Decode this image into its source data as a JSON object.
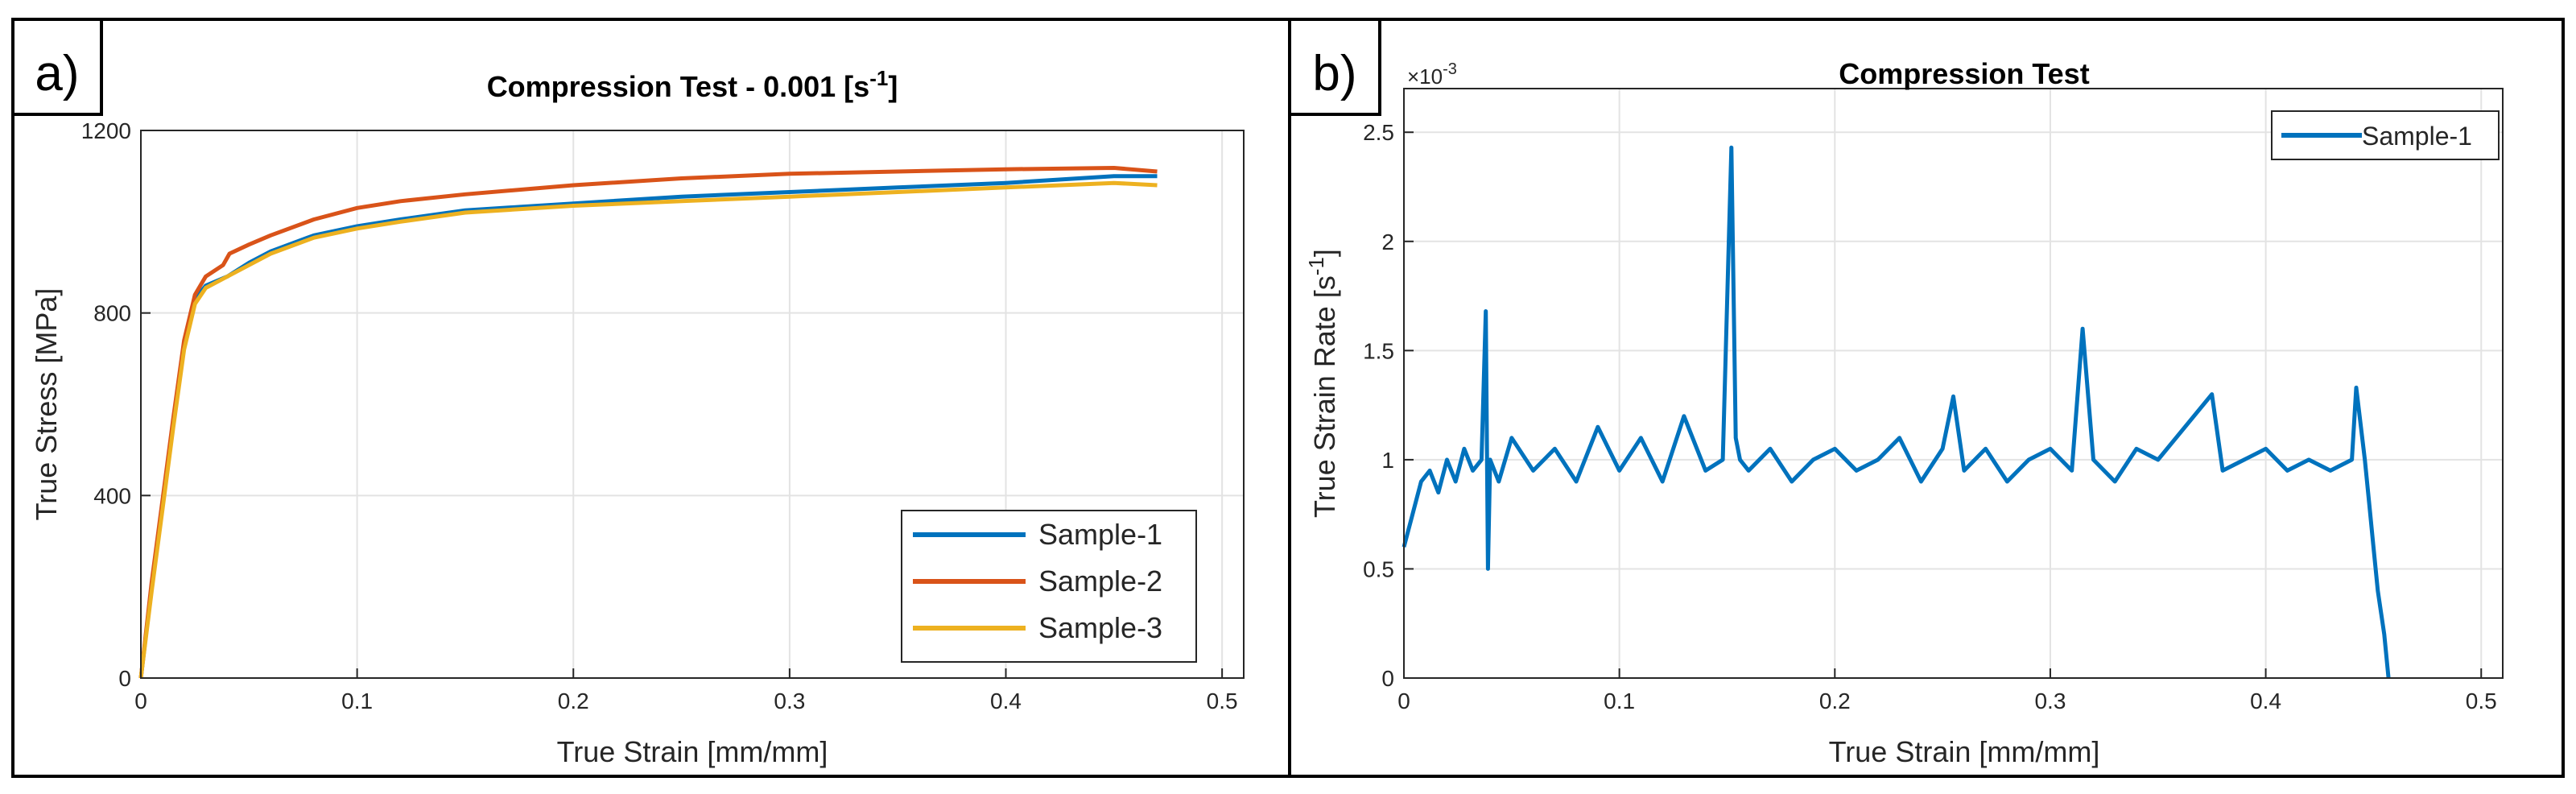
{
  "colors": {
    "sample1": "#0072BD",
    "sample2": "#D95319",
    "sample3": "#EDB120",
    "grid": "#e3e3e3",
    "axis": "#262626",
    "frame": "#000000"
  },
  "chart_data": [
    {
      "type": "line",
      "panel_label": "a)",
      "title": "Compression Test - 0.001 [s",
      "title_sup": "-1",
      "title_end": "]",
      "xlabel": "True Strain [mm/mm]",
      "ylabel": "True Stress [MPa]",
      "xlim": [
        0,
        0.51
      ],
      "ylim": [
        0,
        1200
      ],
      "xticks": [
        0,
        0.1,
        0.2,
        0.3,
        0.4,
        0.5
      ],
      "xtick_labels": [
        "0",
        "0.1",
        "0.2",
        "0.3",
        "0.4",
        "0.5"
      ],
      "yticks": [
        0,
        400,
        800,
        1200
      ],
      "ytick_labels": [
        "0",
        "400",
        "800",
        "1200"
      ],
      "grid": true,
      "legend_position": "bottom-right",
      "series": [
        {
          "name": "Sample-1",
          "color_key": "sample1",
          "x": [
            0,
            0.005,
            0.01,
            0.015,
            0.02,
            0.025,
            0.03,
            0.04,
            0.05,
            0.06,
            0.08,
            0.1,
            0.12,
            0.15,
            0.2,
            0.25,
            0.3,
            0.35,
            0.4,
            0.45,
            0.47
          ],
          "y": [
            0,
            200,
            380,
            560,
            730,
            830,
            860,
            880,
            910,
            935,
            970,
            990,
            1005,
            1025,
            1040,
            1055,
            1065,
            1075,
            1085,
            1100,
            1100
          ]
        },
        {
          "name": "Sample-2",
          "color_key": "sample2",
          "x": [
            0,
            0.005,
            0.01,
            0.015,
            0.02,
            0.025,
            0.03,
            0.038,
            0.041,
            0.05,
            0.06,
            0.08,
            0.1,
            0.12,
            0.15,
            0.2,
            0.25,
            0.3,
            0.35,
            0.4,
            0.45,
            0.47
          ],
          "y": [
            0,
            210,
            390,
            570,
            740,
            840,
            880,
            905,
            930,
            950,
            970,
            1005,
            1030,
            1045,
            1060,
            1080,
            1095,
            1105,
            1110,
            1115,
            1118,
            1110
          ]
        },
        {
          "name": "Sample-3",
          "color_key": "sample3",
          "x": [
            0,
            0.005,
            0.01,
            0.015,
            0.02,
            0.025,
            0.03,
            0.04,
            0.05,
            0.06,
            0.08,
            0.1,
            0.12,
            0.15,
            0.2,
            0.25,
            0.3,
            0.35,
            0.4,
            0.45,
            0.47
          ],
          "y": [
            0,
            190,
            370,
            550,
            720,
            820,
            855,
            880,
            905,
            930,
            965,
            985,
            1000,
            1020,
            1035,
            1045,
            1055,
            1065,
            1075,
            1085,
            1080
          ]
        }
      ]
    },
    {
      "type": "line",
      "panel_label": "b)",
      "title": "Compression Test",
      "xlabel": "True Strain [mm/mm]",
      "ylabel": "True Strain Rate [s",
      "ylabel_sup": "-1",
      "ylabel_end": "]",
      "y_exponent_prefix": "×10",
      "y_exponent_sup": "-3",
      "xlim": [
        0,
        0.51
      ],
      "ylim": [
        0,
        2.7
      ],
      "xticks": [
        0,
        0.1,
        0.2,
        0.3,
        0.4,
        0.5
      ],
      "xtick_labels": [
        "0",
        "0.1",
        "0.2",
        "0.3",
        "0.4",
        "0.5"
      ],
      "yticks": [
        0,
        0.5,
        1,
        1.5,
        2,
        2.5
      ],
      "ytick_labels": [
        "0",
        "0.5",
        "1",
        "1.5",
        "2",
        "2.5"
      ],
      "grid": true,
      "legend_position": "top-right",
      "y_unit_scale": "1e-3",
      "series": [
        {
          "name": "Sample-1",
          "color_key": "sample1",
          "x": [
            0,
            0.004,
            0.008,
            0.012,
            0.016,
            0.02,
            0.024,
            0.028,
            0.032,
            0.036,
            0.038,
            0.039,
            0.04,
            0.044,
            0.05,
            0.06,
            0.07,
            0.08,
            0.09,
            0.1,
            0.11,
            0.12,
            0.13,
            0.14,
            0.148,
            0.152,
            0.154,
            0.156,
            0.16,
            0.17,
            0.18,
            0.19,
            0.2,
            0.21,
            0.22,
            0.23,
            0.24,
            0.25,
            0.255,
            0.26,
            0.27,
            0.28,
            0.29,
            0.3,
            0.31,
            0.315,
            0.32,
            0.33,
            0.34,
            0.35,
            0.375,
            0.38,
            0.39,
            0.4,
            0.41,
            0.42,
            0.43,
            0.44,
            0.442,
            0.446,
            0.448,
            0.45,
            0.452,
            0.455,
            0.457
          ],
          "y": [
            0.6,
            0.75,
            0.9,
            0.95,
            0.85,
            1.0,
            0.9,
            1.05,
            0.95,
            1.0,
            1.68,
            0.5,
            1.0,
            0.9,
            1.1,
            0.95,
            1.05,
            0.9,
            1.15,
            0.95,
            1.1,
            0.9,
            1.2,
            0.95,
            1.0,
            2.43,
            1.1,
            1.0,
            0.95,
            1.05,
            0.9,
            1.0,
            1.05,
            0.95,
            1.0,
            1.1,
            0.9,
            1.05,
            1.29,
            0.95,
            1.05,
            0.9,
            1.0,
            1.05,
            0.95,
            1.6,
            1.0,
            0.9,
            1.05,
            1.0,
            1.3,
            0.95,
            1.0,
            1.05,
            0.95,
            1.0,
            0.95,
            1.0,
            1.33,
            1.0,
            0.8,
            0.6,
            0.4,
            0.2,
            0.0
          ]
        }
      ]
    }
  ]
}
